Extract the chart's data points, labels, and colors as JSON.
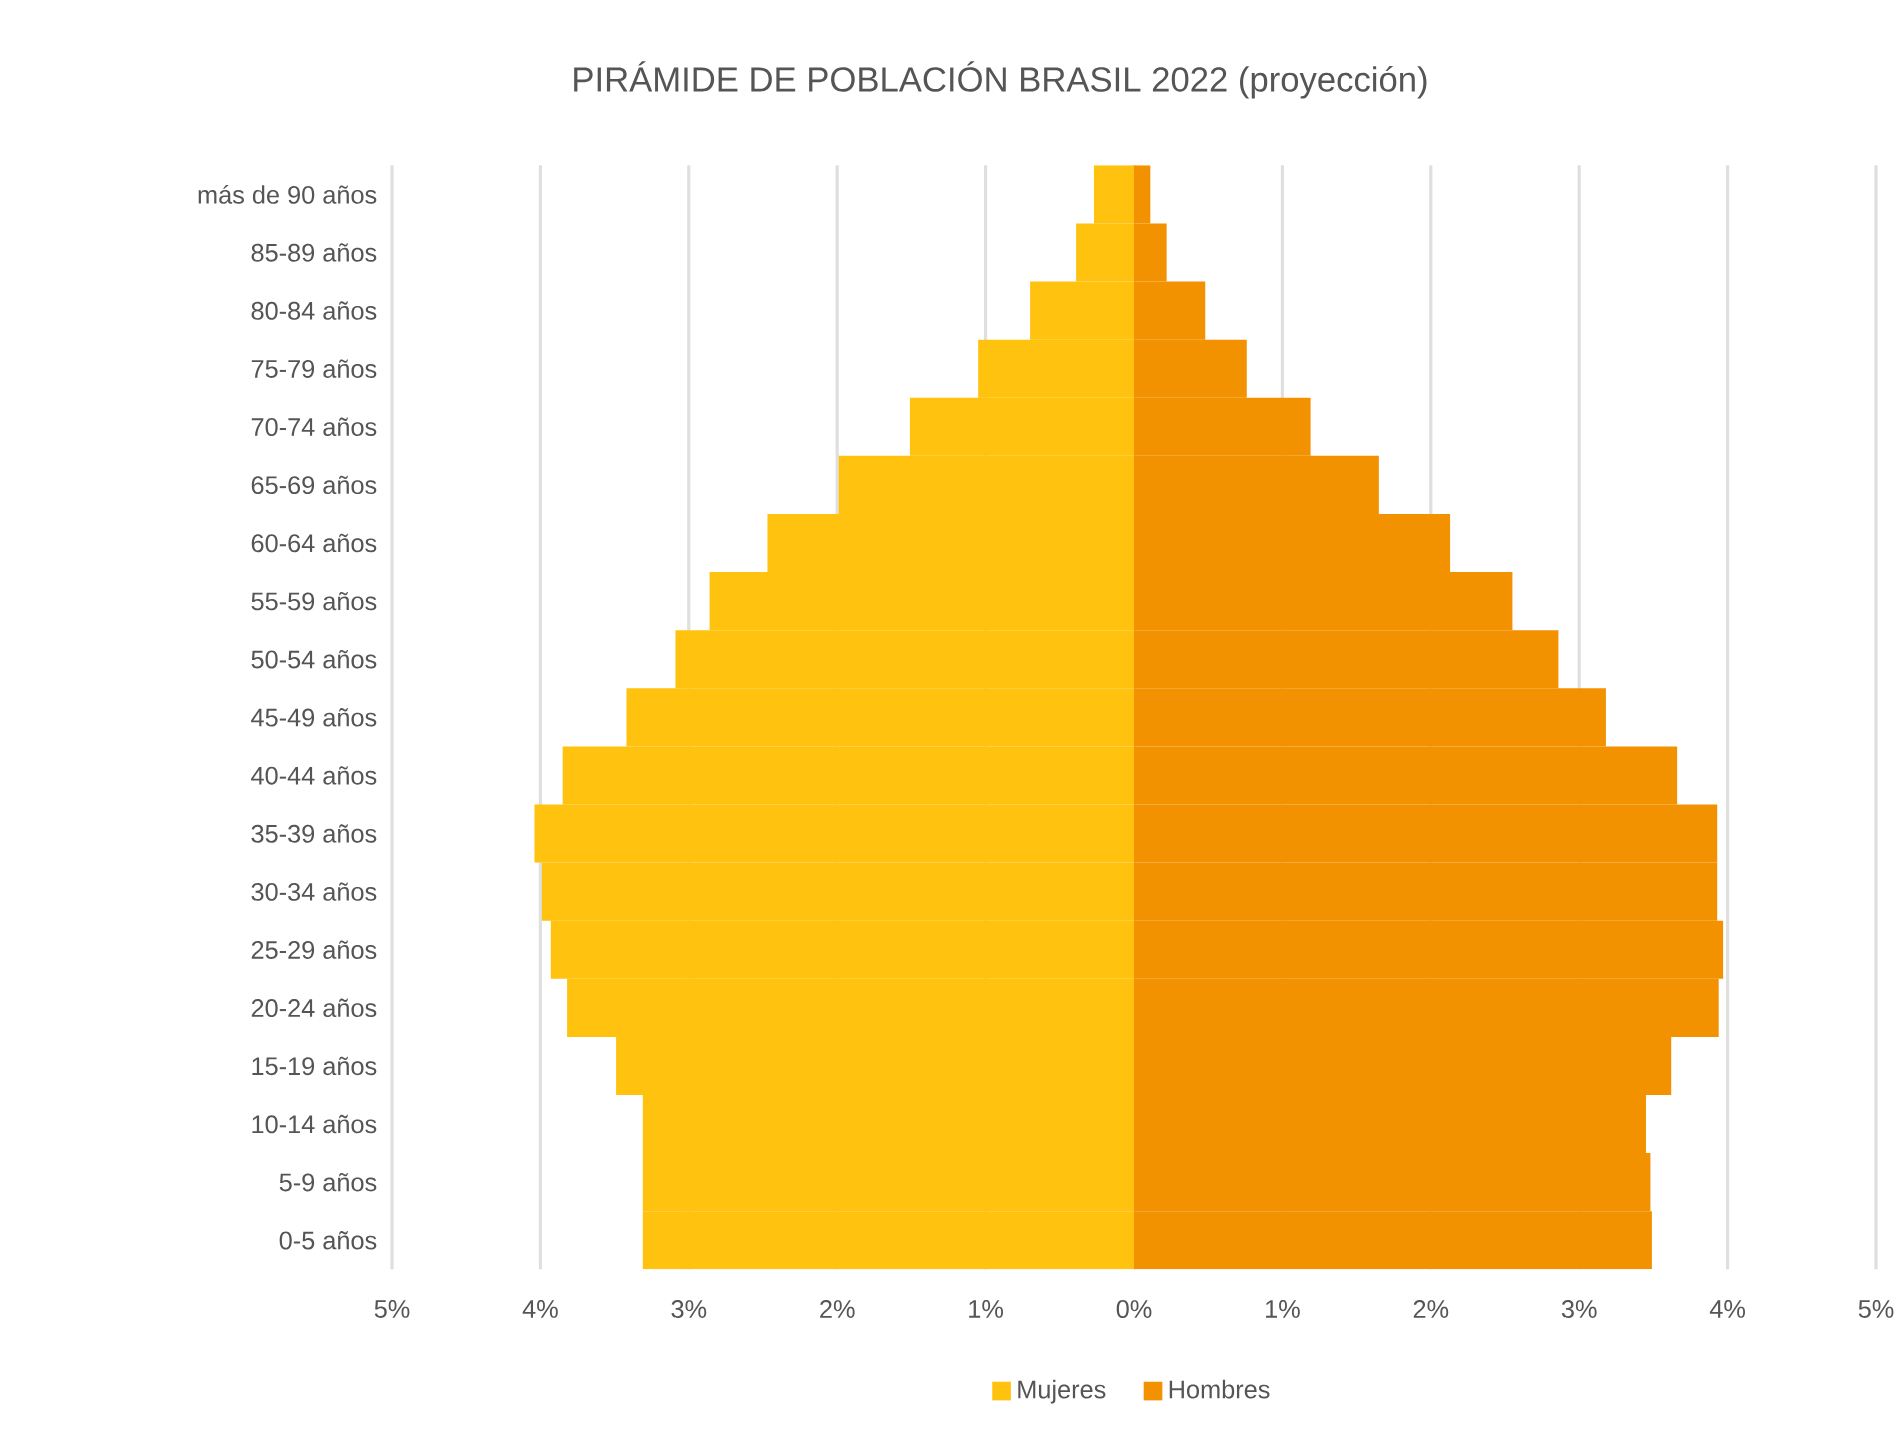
{
  "chart_data": {
    "type": "bar",
    "orientation": "horizontal",
    "title": "PIRÁMIDE DE POBLACIÓN BRASIL 2022 (proyección)",
    "categories": [
      "más de 90 años",
      "85-89 años",
      "80-84 años",
      "75-79 años",
      "70-74 años",
      "65-69 años",
      "60-64 años",
      "55-59 años",
      "50-54 años",
      "45-49 años",
      "40-44 años",
      "35-39 años",
      "30-34 años",
      "25-29 años",
      "20-24 años",
      "15-19 años",
      "10-14 años",
      "5-9 años",
      "0-5 años"
    ],
    "series": [
      {
        "name": "Mujeres",
        "color": "#ffc20e",
        "values": [
          -0.27,
          -0.39,
          -0.7,
          -1.05,
          -1.51,
          -1.99,
          -2.47,
          -2.86,
          -3.09,
          -3.42,
          -3.85,
          -4.04,
          -3.99,
          -3.93,
          -3.82,
          -3.49,
          -3.31,
          -3.31,
          -3.31
        ]
      },
      {
        "name": "Hombres",
        "color": "#f39200",
        "values": [
          0.11,
          0.22,
          0.48,
          0.76,
          1.19,
          1.65,
          2.13,
          2.55,
          2.86,
          3.18,
          3.66,
          3.93,
          3.93,
          3.97,
          3.94,
          3.62,
          3.45,
          3.48,
          3.49
        ]
      }
    ],
    "xlim": [
      -5,
      5
    ],
    "xticks": [
      {
        "value": -5,
        "label": "5%"
      },
      {
        "value": -4,
        "label": "4%"
      },
      {
        "value": -3,
        "label": "3%"
      },
      {
        "value": -2,
        "label": "2%"
      },
      {
        "value": -1,
        "label": "1%"
      },
      {
        "value": 0,
        "label": "0%"
      },
      {
        "value": 1,
        "label": "1%"
      },
      {
        "value": 2,
        "label": "2%"
      },
      {
        "value": 3,
        "label": "3%"
      },
      {
        "value": 4,
        "label": "4%"
      },
      {
        "value": 5,
        "label": "5%"
      }
    ],
    "stacked": true,
    "grid": "x",
    "legend": "bottom"
  }
}
